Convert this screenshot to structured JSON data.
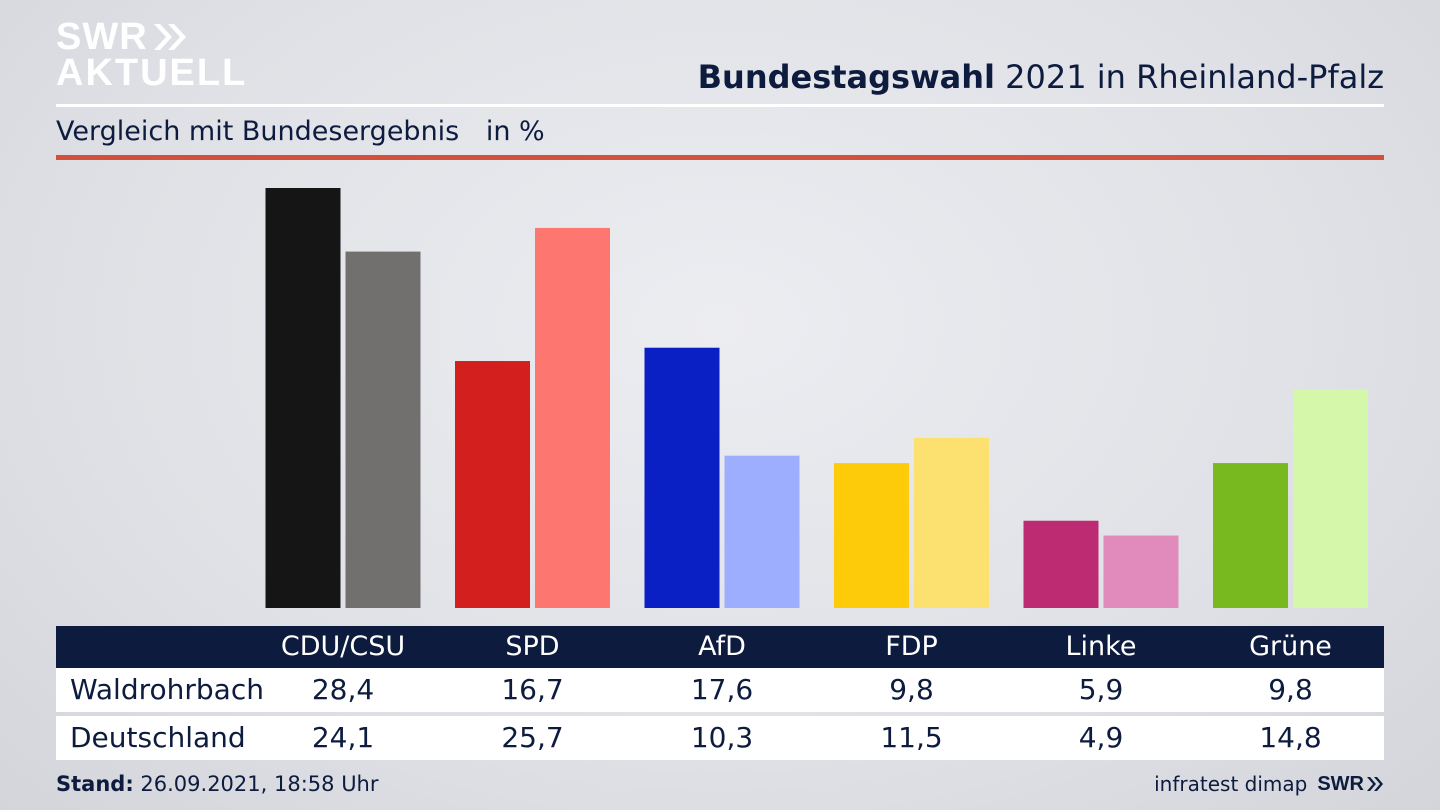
{
  "logo": {
    "line1": "SWR",
    "line2": "AKTUELL"
  },
  "header": {
    "title_bold": "Bundestagswahl",
    "title_rest": "2021 in Rheinland-Pfalz",
    "subtitle": "Vergleich mit Bundesergebnis",
    "unit": "in %"
  },
  "colors": {
    "navy": "#0d1b3e",
    "accent_rule": "#d2503c"
  },
  "chart_data": {
    "type": "bar",
    "title": "Bundestagswahl 2021 in Rheinland-Pfalz",
    "subtitle": "Vergleich mit Bundesergebnis",
    "ylabel": "in %",
    "categories": [
      "CDU/CSU",
      "SPD",
      "AfD",
      "FDP",
      "Linke",
      "Grüne"
    ],
    "series": [
      {
        "name": "Waldrohrbach",
        "values": [
          28.4,
          16.7,
          17.6,
          9.8,
          5.9,
          9.8
        ],
        "colors": [
          "#151515",
          "#d41f1f",
          "#0a1fc4",
          "#fecb0b",
          "#bd2b72",
          "#78b91f"
        ]
      },
      {
        "name": "Deutschland",
        "values": [
          24.1,
          25.7,
          10.3,
          11.5,
          4.9,
          14.8
        ],
        "colors": [
          "#71706f",
          "#fe7670",
          "#9eaefe",
          "#fce171",
          "#e08bbb",
          "#d4f7a9"
        ]
      }
    ],
    "ylim": [
      0,
      28.4
    ],
    "grid": false,
    "legend": "table-below"
  },
  "table": {
    "rows": [
      {
        "label": "Waldrohrbach",
        "values": [
          "28,4",
          "16,7",
          "17,6",
          "9,8",
          "5,9",
          "9,8"
        ]
      },
      {
        "label": "Deutschland",
        "values": [
          "24,1",
          "25,7",
          "10,3",
          "11,5",
          "4,9",
          "14,8"
        ]
      }
    ]
  },
  "footer": {
    "stand_label": "Stand:",
    "stand_value": "26.09.2021, 18:58 Uhr",
    "source": "infratest dimap",
    "brand": "SWR"
  }
}
